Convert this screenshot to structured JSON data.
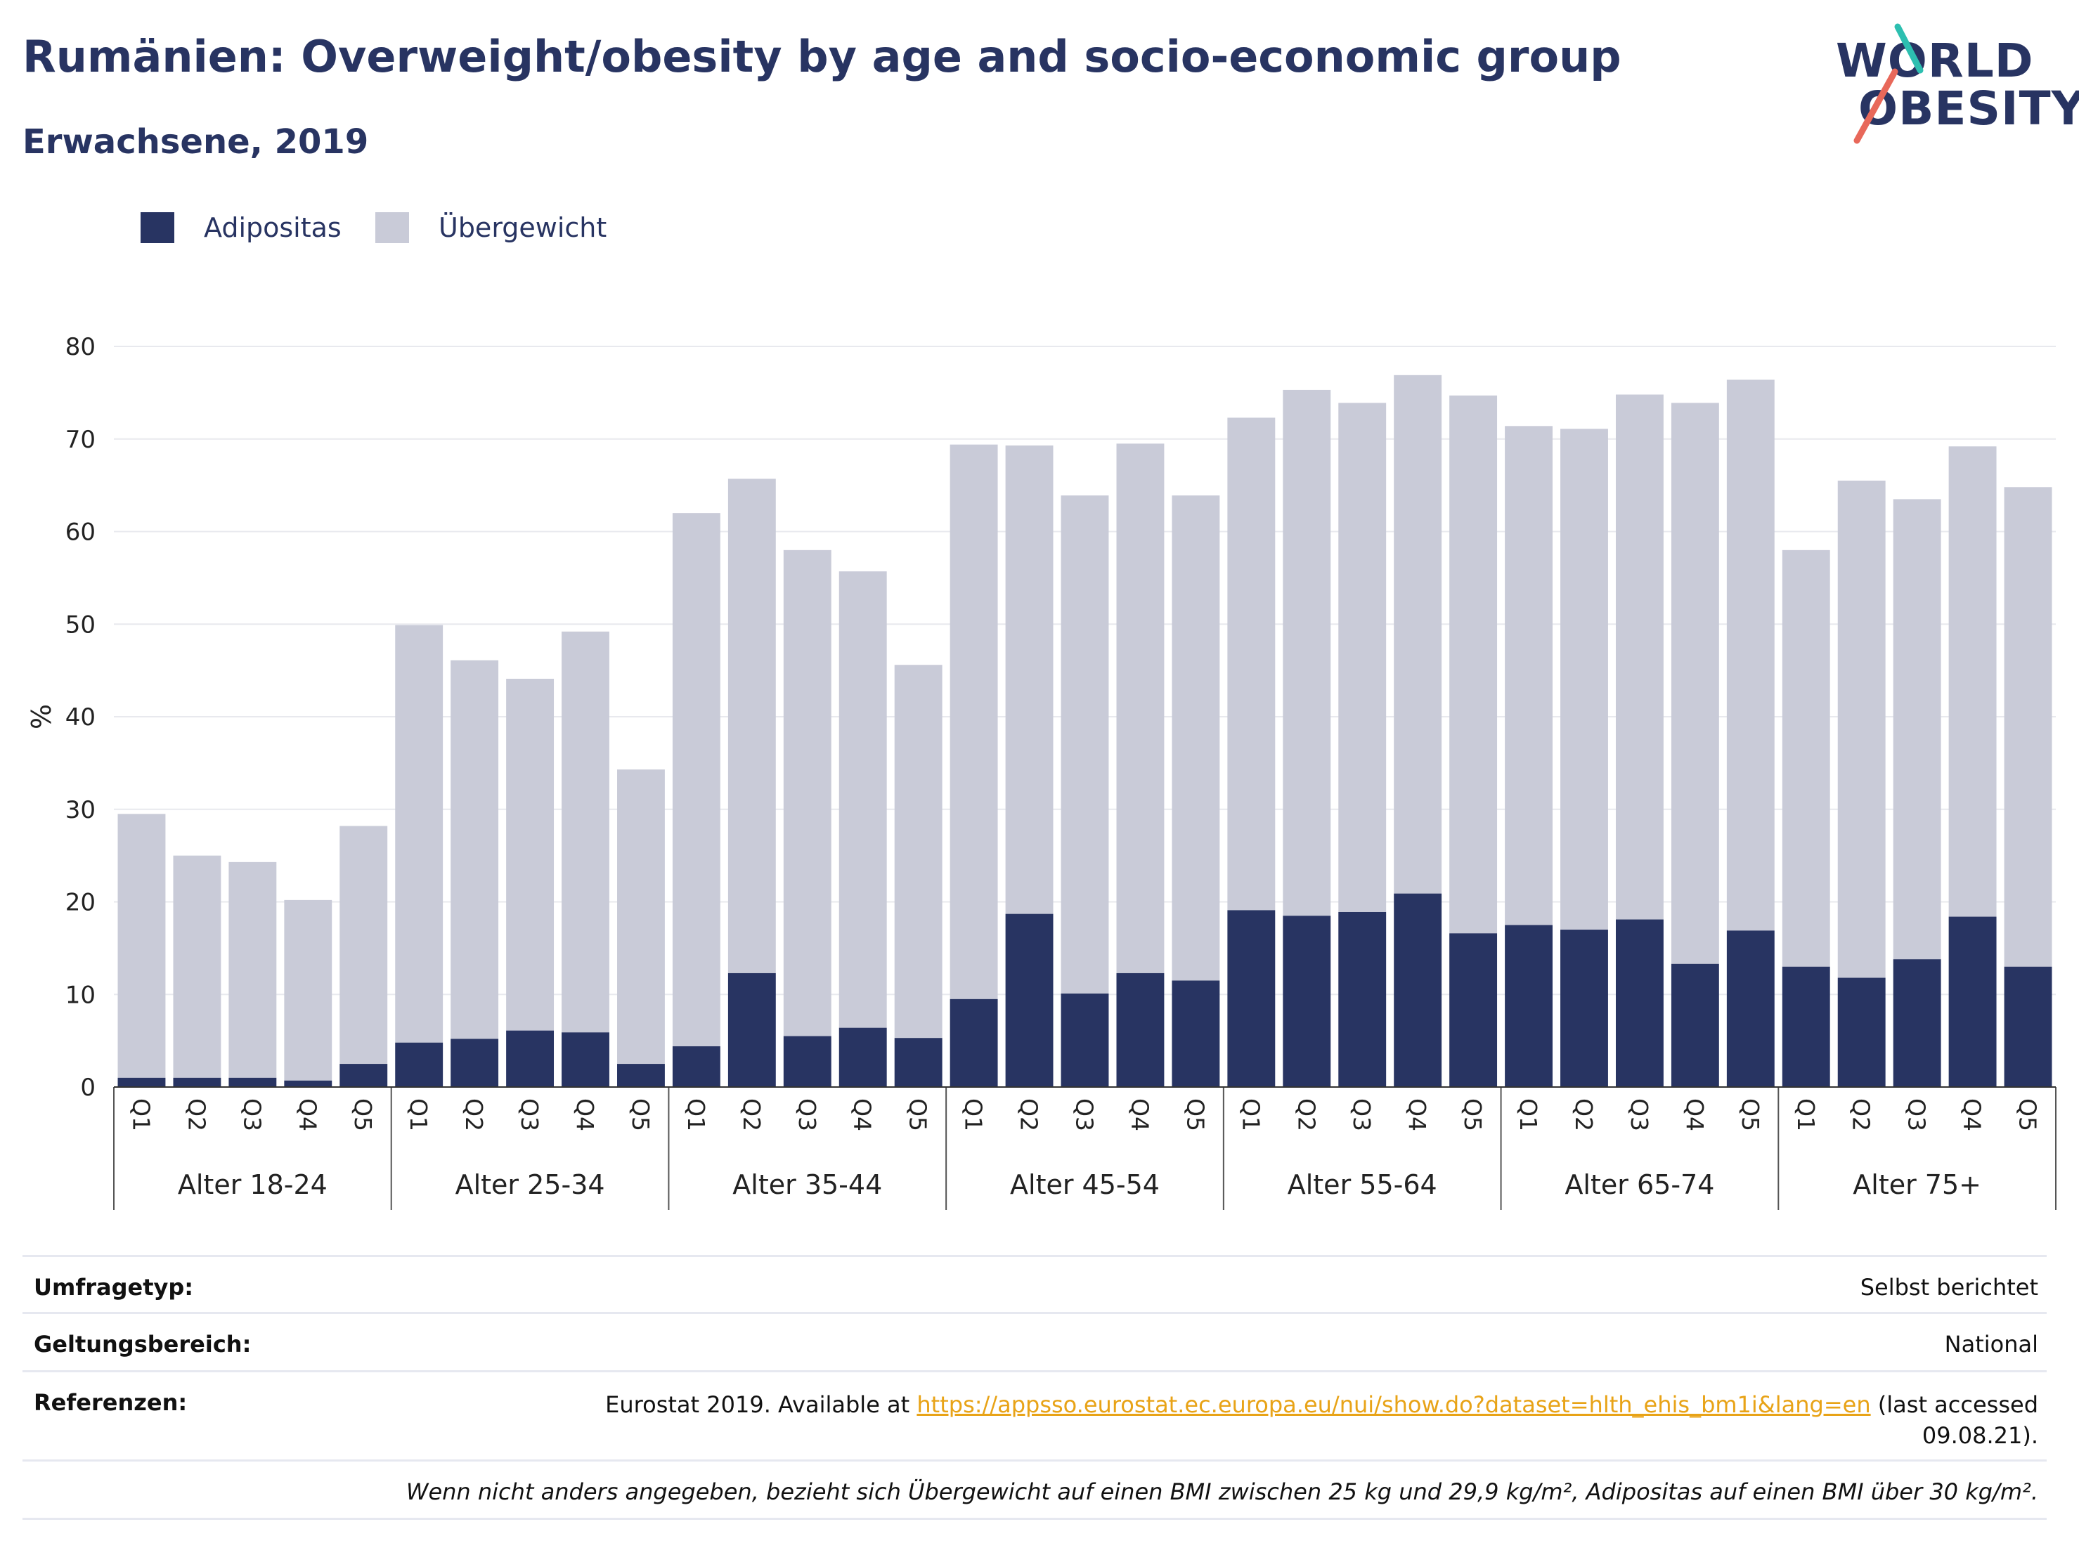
{
  "header": {
    "title": "Rumänien: Overweight/obesity by age and socio-economic group",
    "subtitle": "Erwachsene, 2019"
  },
  "logo": {
    "line1": "WORLD",
    "line2": "OBESITY",
    "accent_teal": "#2dbfb0",
    "accent_red": "#e8685a"
  },
  "legend": [
    {
      "label": "Adipositas",
      "color": "#283462"
    },
    {
      "label": "Übergewicht",
      "color": "#c9cbd8"
    }
  ],
  "info": {
    "survey_type_label": "Umfragetyp:",
    "survey_type_value": "Selbst berichtet",
    "scope_label": "Geltungsbereich:",
    "scope_value": "National",
    "references_label": "Referenzen:",
    "references_prefix": "Eurostat 2019. Available at ",
    "references_link": "https://appsso.eurostat.ec.europa.eu/nui/show.do?dataset=hlth_ehis_bm1i&lang=en",
    "references_suffix": " (last accessed",
    "references_date": "09.08.21).",
    "footnote": "Wenn nicht anders angegeben, bezieht sich Übergewicht auf einen BMI zwischen 25 kg und 29,9 kg/m², Adipositas auf einen BMI über 30 kg/m²."
  },
  "chart_data": {
    "type": "bar",
    "stacked": true,
    "ylabel": "%",
    "ylim": [
      0,
      80
    ],
    "yticks": [
      0,
      10,
      20,
      30,
      40,
      50,
      60,
      70,
      80
    ],
    "grid": true,
    "legend_position": "top-left",
    "groups": [
      {
        "label": "Alter 18-24",
        "quintiles": [
          "Q1",
          "Q2",
          "Q3",
          "Q4",
          "Q5"
        ],
        "obesity": [
          1.0,
          1.0,
          1.0,
          0.7,
          2.5
        ],
        "total": [
          29.5,
          25.0,
          24.3,
          20.2,
          28.2
        ]
      },
      {
        "label": "Alter 25-34",
        "quintiles": [
          "Q1",
          "Q2",
          "Q3",
          "Q4",
          "Q5"
        ],
        "obesity": [
          4.8,
          5.2,
          6.1,
          5.9,
          2.5
        ],
        "total": [
          49.9,
          46.1,
          44.1,
          49.2,
          34.3
        ]
      },
      {
        "label": "Alter 35-44",
        "quintiles": [
          "Q1",
          "Q2",
          "Q3",
          "Q4",
          "Q5"
        ],
        "obesity": [
          4.4,
          12.3,
          5.5,
          6.4,
          5.3
        ],
        "total": [
          62.0,
          65.7,
          58.0,
          55.7,
          45.6
        ]
      },
      {
        "label": "Alter 45-54",
        "quintiles": [
          "Q1",
          "Q2",
          "Q3",
          "Q4",
          "Q5"
        ],
        "obesity": [
          9.5,
          18.7,
          10.1,
          12.3,
          11.5
        ],
        "total": [
          69.4,
          69.3,
          63.9,
          69.5,
          63.9
        ]
      },
      {
        "label": "Alter 55-64",
        "quintiles": [
          "Q1",
          "Q2",
          "Q3",
          "Q4",
          "Q5"
        ],
        "obesity": [
          19.1,
          18.5,
          18.9,
          20.9,
          16.6
        ],
        "total": [
          72.3,
          75.3,
          73.9,
          76.9,
          74.7
        ]
      },
      {
        "label": "Alter 65-74",
        "quintiles": [
          "Q1",
          "Q2",
          "Q3",
          "Q4",
          "Q5"
        ],
        "obesity": [
          17.5,
          17.0,
          18.1,
          13.3,
          16.9
        ],
        "total": [
          71.4,
          71.1,
          74.8,
          73.9,
          76.4
        ]
      },
      {
        "label": "Alter 75+",
        "quintiles": [
          "Q1",
          "Q2",
          "Q3",
          "Q4",
          "Q5"
        ],
        "obesity": [
          13.0,
          11.8,
          13.8,
          18.4,
          13.0
        ],
        "total": [
          58.0,
          65.5,
          63.5,
          69.2,
          64.8
        ]
      }
    ],
    "series": [
      {
        "name": "Adipositas",
        "color": "#283462"
      },
      {
        "name": "Übergewicht",
        "color": "#c9cbd8"
      }
    ]
  }
}
